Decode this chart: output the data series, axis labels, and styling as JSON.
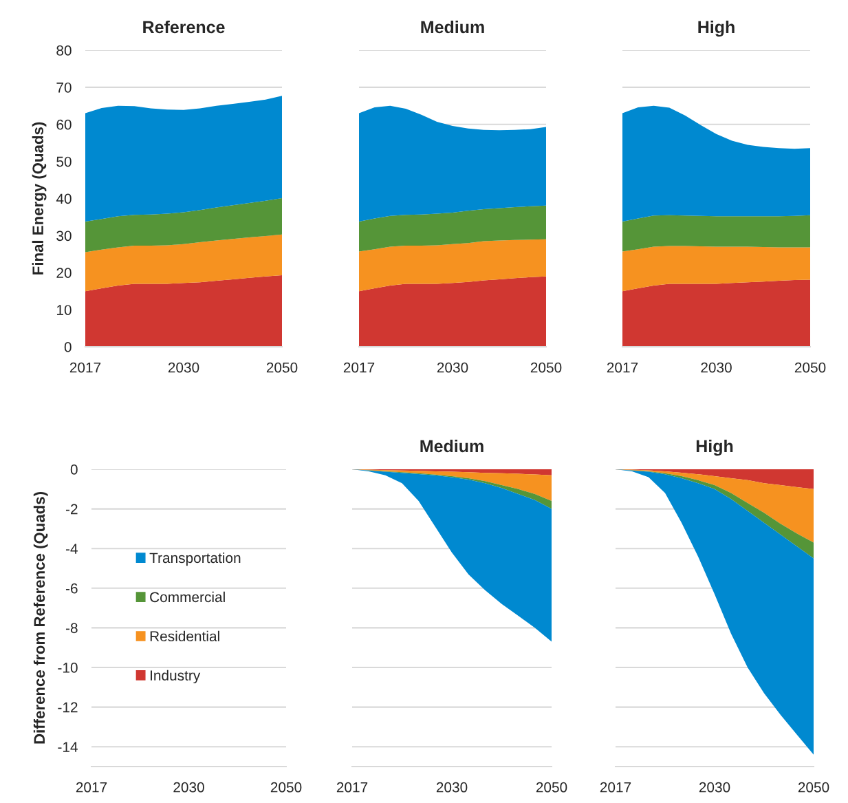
{
  "chart_data": [
    {
      "type": "area",
      "stacked": true,
      "title": "Reference",
      "ylabel": "Final Energy (Quads)",
      "categories": [
        "2017",
        null,
        null,
        null,
        null,
        null,
        "2030",
        null,
        null,
        null,
        null,
        null,
        "2050"
      ],
      "ylim": [
        0,
        80
      ],
      "yticks": [
        0,
        10,
        20,
        30,
        40,
        50,
        60,
        70,
        80
      ],
      "grid": "y",
      "series": [
        {
          "color": "#d03731",
          "values": [
            15,
            15.8,
            16.5,
            17,
            17,
            17,
            17.2,
            17.4,
            17.8,
            18.2,
            18.6,
            19,
            19.3
          ]
        },
        {
          "color": "#f69220",
          "values": [
            10.5,
            10.4,
            10.3,
            10.3,
            10.3,
            10.4,
            10.5,
            10.8,
            10.9,
            10.9,
            10.9,
            10.9,
            11.0
          ]
        },
        {
          "color": "#559538",
          "values": [
            8.3,
            8.3,
            8.4,
            8.3,
            8.4,
            8.5,
            8.6,
            8.7,
            8.9,
            9.1,
            9.3,
            9.5,
            9.8
          ]
        },
        {
          "color": "#0089d0",
          "values": [
            29.2,
            29.9,
            29.8,
            29.3,
            28.6,
            28.1,
            27.6,
            27.4,
            27.4,
            27.3,
            27.3,
            27.3,
            27.6
          ]
        }
      ]
    },
    {
      "type": "area",
      "stacked": true,
      "title": "Medium",
      "categories": [
        "2017",
        null,
        null,
        null,
        null,
        null,
        "2030",
        null,
        null,
        null,
        null,
        null,
        "2050"
      ],
      "ylim": [
        0,
        80
      ],
      "yticks": [
        0,
        10,
        20,
        30,
        40,
        50,
        60,
        70,
        80
      ],
      "grid": "y",
      "tick_labels": "x",
      "series": [
        {
          "color": "#d03731",
          "values": [
            15,
            15.8,
            16.5,
            17,
            17,
            17,
            17.2,
            17.5,
            17.9,
            18.2,
            18.5,
            18.8,
            19.0
          ]
        },
        {
          "color": "#f69220",
          "values": [
            10.7,
            10.5,
            10.5,
            10.3,
            10.3,
            10.4,
            10.5,
            10.5,
            10.6,
            10.5,
            10.3,
            10.1,
            10.0
          ]
        },
        {
          "color": "#559538",
          "values": [
            8.1,
            8.3,
            8.3,
            8.3,
            8.4,
            8.5,
            8.5,
            8.7,
            8.6,
            8.7,
            8.9,
            9.0,
            9.1
          ]
        },
        {
          "color": "#0089d0",
          "values": [
            29.2,
            30.0,
            29.7,
            28.6,
            26.9,
            24.8,
            23.4,
            22.2,
            21.4,
            21.0,
            20.8,
            20.8,
            21.2
          ]
        }
      ]
    },
    {
      "type": "area",
      "stacked": true,
      "title": "High",
      "categories": [
        "2017",
        null,
        null,
        null,
        null,
        null,
        "2030",
        null,
        null,
        null,
        null,
        null,
        "2050"
      ],
      "ylim": [
        0,
        80
      ],
      "yticks": [
        0,
        10,
        20,
        30,
        40,
        50,
        60,
        70,
        80
      ],
      "grid": "y",
      "tick_labels": "x",
      "series": [
        {
          "color": "#d03731",
          "values": [
            15,
            15.8,
            16.5,
            17,
            17,
            17,
            17,
            17.2,
            17.4,
            17.6,
            17.8,
            18,
            18.1
          ]
        },
        {
          "color": "#f69220",
          "values": [
            10.7,
            10.5,
            10.5,
            10.2,
            10.2,
            10.1,
            10,
            9.8,
            9.6,
            9.3,
            9.0,
            8.8,
            8.7
          ]
        },
        {
          "color": "#559538",
          "values": [
            8.1,
            8.3,
            8.4,
            8.3,
            8.2,
            8.2,
            8.2,
            8.2,
            8.2,
            8.3,
            8.4,
            8.5,
            8.7
          ]
        },
        {
          "color": "#0089d0",
          "values": [
            29.2,
            30.0,
            29.6,
            29.0,
            27.0,
            24.5,
            22.2,
            20.4,
            19.3,
            18.7,
            18.4,
            18.1,
            18.1
          ]
        }
      ]
    },
    {
      "type": "area",
      "stacked": true,
      "ylabel": "Difference from Reference (Quads)",
      "categories": [
        "2017",
        null,
        null,
        null,
        null,
        null,
        "2030",
        null,
        null,
        null,
        null,
        null,
        "2050"
      ],
      "ylim": [
        -15,
        0
      ],
      "yticks": [
        -14,
        -12,
        -10,
        -8,
        -6,
        -4,
        -2,
        0
      ],
      "grid": "y",
      "legend": "center",
      "series": [
        {
          "name": "Industry",
          "color": "#d03731",
          "values": [
            null,
            null,
            null,
            null,
            null,
            null,
            null,
            null,
            null,
            null,
            null,
            null,
            null
          ]
        },
        {
          "name": "Residential",
          "color": "#f69220",
          "values": [
            null,
            null,
            null,
            null,
            null,
            null,
            null,
            null,
            null,
            null,
            null,
            null,
            null
          ]
        },
        {
          "name": "Commercial",
          "color": "#559538",
          "values": [
            null,
            null,
            null,
            null,
            null,
            null,
            null,
            null,
            null,
            null,
            null,
            null,
            null
          ]
        },
        {
          "name": "Transportation",
          "color": "#0089d0",
          "values": [
            null,
            null,
            null,
            null,
            null,
            null,
            null,
            null,
            null,
            null,
            null,
            null,
            null
          ]
        }
      ]
    },
    {
      "type": "area",
      "stacked": true,
      "title": "Medium",
      "categories": [
        "2017",
        null,
        null,
        null,
        null,
        null,
        "2030",
        null,
        null,
        null,
        null,
        null,
        "2050"
      ],
      "ylim": [
        -15,
        0
      ],
      "yticks": [
        -14,
        -12,
        -10,
        -8,
        -6,
        -4,
        -2,
        0
      ],
      "grid": "y",
      "tick_labels": "x",
      "series": [
        {
          "color": "#d03731",
          "values": [
            0,
            -0.02,
            -0.04,
            -0.06,
            -0.08,
            -0.1,
            -0.12,
            -0.15,
            -0.18,
            -0.2,
            -0.23,
            -0.26,
            -0.3
          ]
        },
        {
          "color": "#f69220",
          "values": [
            0,
            -0.03,
            -0.06,
            -0.09,
            -0.12,
            -0.17,
            -0.23,
            -0.3,
            -0.42,
            -0.6,
            -0.77,
            -0.99,
            -1.3
          ]
        },
        {
          "color": "#559538",
          "values": [
            0,
            -0.01,
            -0.02,
            -0.03,
            -0.04,
            -0.03,
            -0.05,
            -0.07,
            -0.1,
            -0.15,
            -0.25,
            -0.3,
            -0.4
          ]
        },
        {
          "color": "#0089d0",
          "values": [
            0,
            -0.04,
            -0.18,
            -0.52,
            -1.36,
            -2.6,
            -3.8,
            -4.78,
            -5.4,
            -5.85,
            -6.15,
            -6.45,
            -6.7
          ]
        }
      ]
    },
    {
      "type": "area",
      "stacked": true,
      "title": "High",
      "categories": [
        "2017",
        null,
        null,
        null,
        null,
        null,
        "2030",
        null,
        null,
        null,
        null,
        null,
        "2050"
      ],
      "ylim": [
        -15,
        0
      ],
      "yticks": [
        -14,
        -12,
        -10,
        -8,
        -6,
        -4,
        -2,
        0
      ],
      "grid": "y",
      "tick_labels": "x",
      "series": [
        {
          "color": "#d03731",
          "values": [
            0,
            -0.02,
            -0.05,
            -0.1,
            -0.17,
            -0.25,
            -0.35,
            -0.45,
            -0.55,
            -0.7,
            -0.8,
            -0.9,
            -1.0
          ]
        },
        {
          "color": "#f69220",
          "values": [
            0,
            -0.03,
            -0.05,
            -0.1,
            -0.18,
            -0.3,
            -0.45,
            -0.75,
            -1.15,
            -1.5,
            -1.95,
            -2.35,
            -2.7
          ]
        },
        {
          "color": "#559538",
          "values": [
            0,
            -0.01,
            -0.02,
            -0.05,
            -0.1,
            -0.15,
            -0.2,
            -0.3,
            -0.4,
            -0.5,
            -0.55,
            -0.65,
            -0.8
          ]
        },
        {
          "color": "#0089d0",
          "values": [
            0,
            -0.04,
            -0.28,
            -0.95,
            -2.25,
            -3.7,
            -5.3,
            -6.8,
            -7.9,
            -8.6,
            -9.1,
            -9.5,
            -9.9
          ]
        }
      ]
    }
  ]
}
